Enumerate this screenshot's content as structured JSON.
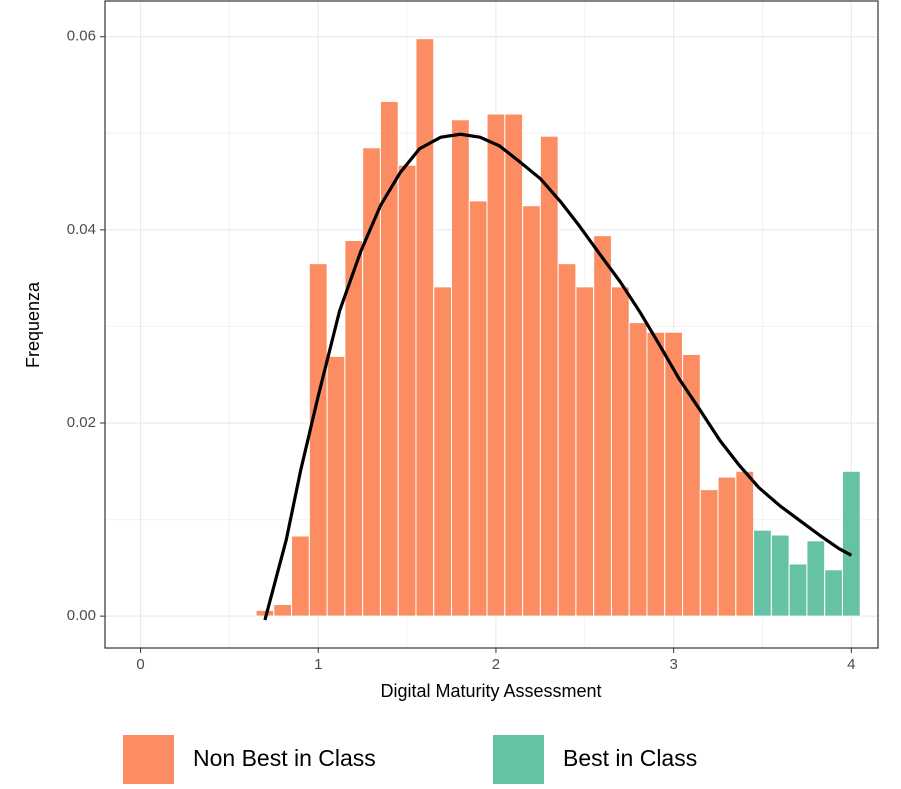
{
  "chart_data": {
    "type": "histogram",
    "xlabel": "Digital Maturity Assessment",
    "ylabel": "Frequenza",
    "bins": [
      0.65,
      0.75,
      0.85,
      0.95,
      1.05,
      1.15,
      1.25,
      1.35,
      1.45,
      1.55,
      1.65,
      1.75,
      1.85,
      1.95,
      2.05,
      2.15,
      2.25,
      2.35,
      2.45,
      2.55,
      2.65,
      2.75,
      2.85,
      2.95,
      3.05,
      3.15,
      3.25,
      3.35,
      3.45,
      3.55,
      3.65,
      3.75,
      3.85,
      3.95,
      4.05
    ],
    "series": [
      {
        "name": "Non Best in Class",
        "color": "#fc8d62",
        "values": [
          0.0006,
          0.0012,
          0.0083,
          0.0365,
          0.0269,
          0.0389,
          0.0485,
          0.0533,
          0.0467,
          0.0598,
          0.0341,
          0.0514,
          0.043,
          0.052,
          0.052,
          0.0425,
          0.0497,
          0.0365,
          0.0341,
          0.0394,
          0.0341,
          0.0304,
          0.0294,
          0.0294,
          0.0271,
          0.0131,
          0.0144,
          0.015,
          null,
          null,
          null,
          null,
          null,
          null
        ]
      },
      {
        "name": "Best in Class",
        "color": "#66c2a5",
        "values": [
          null,
          null,
          null,
          null,
          null,
          null,
          null,
          null,
          null,
          null,
          null,
          null,
          null,
          null,
          null,
          null,
          null,
          null,
          null,
          null,
          null,
          null,
          null,
          null,
          null,
          null,
          null,
          null,
          0.0089,
          0.0084,
          0.0054,
          0.0078,
          0.0048,
          0.015
        ]
      }
    ],
    "curve": {
      "color": "#000000",
      "x": [
        0.7,
        0.82,
        0.9,
        1.0,
        1.12,
        1.24,
        1.35,
        1.46,
        1.57,
        1.69,
        1.8,
        1.91,
        2.02,
        2.13,
        2.25,
        2.36,
        2.47,
        2.58,
        2.7,
        2.81,
        2.92,
        3.03,
        3.15,
        3.26,
        3.37,
        3.48,
        3.6,
        3.71,
        3.82,
        3.93,
        4.0
      ],
      "values": [
        -0.0004,
        0.0079,
        0.015,
        0.0228,
        0.0316,
        0.0378,
        0.0425,
        0.0459,
        0.0484,
        0.0496,
        0.0499,
        0.0496,
        0.0487,
        0.0471,
        0.0453,
        0.043,
        0.0404,
        0.0376,
        0.0346,
        0.0315,
        0.0281,
        0.0246,
        0.0213,
        0.0182,
        0.0156,
        0.0133,
        0.0114,
        0.0099,
        0.0084,
        0.007,
        0.0063
      ]
    },
    "xlim": [
      -0.2,
      4.15
    ],
    "ylim": [
      -0.0033,
      0.0637
    ],
    "xticks": [
      0,
      1,
      2,
      3,
      4
    ],
    "yticks": [
      {
        "value": 0,
        "label": "0.00"
      },
      0.02,
      0.04,
      0.06
    ],
    "grid": true,
    "legend": "bottom"
  }
}
